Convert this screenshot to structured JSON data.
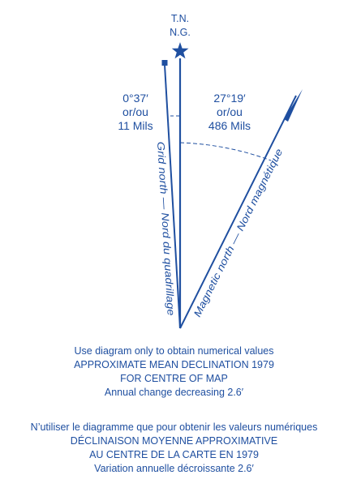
{
  "diagram": {
    "true_north_label": "T.N.",
    "grid_north_top_label": "N.G.",
    "grid_angle": {
      "degrees": "0°37′",
      "or": "or/ou",
      "mils": "11 Mils"
    },
    "magnetic_angle": {
      "degrees": "27°19′",
      "or": "or/ou",
      "mils": "486 Mils"
    },
    "grid_north_label": "Grid north — Nord du quadrillage",
    "magnetic_north_label": "Magnetic north — Nord magnétique",
    "colors": {
      "ink": "#1f4fa0"
    },
    "icons": {
      "true_north": "star-icon",
      "grid_north": "square-marker-icon",
      "magnetic_north": "half-arrow-icon"
    }
  },
  "notes_en": {
    "line1": "Use diagram only to obtain numerical values",
    "line2": "APPROXIMATE MEAN DECLINATION 1979",
    "line3": "FOR CENTRE OF MAP",
    "line4": "Annual change decreasing 2.6′"
  },
  "notes_fr": {
    "line1": "N’utiliser le diagramme que pour obtenir les valeurs numériques",
    "line2": "DÉCLINAISON MOYENNE APPROXIMATIVE",
    "line3": "AU CENTRE DE LA CARTE EN 1979",
    "line4": "Variation annuelle décroissante 2.6′"
  }
}
